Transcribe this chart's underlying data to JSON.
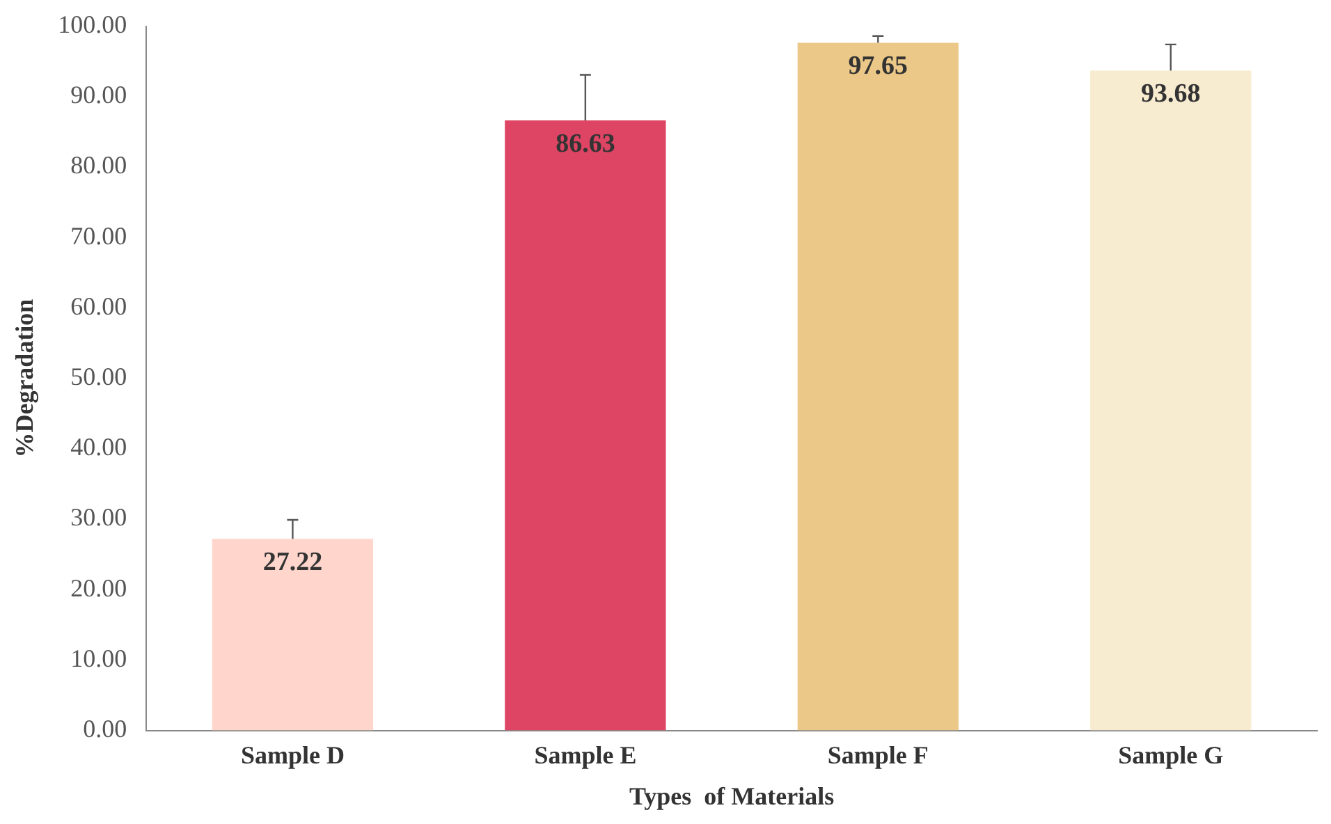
{
  "chart_data": {
    "type": "bar",
    "xlabel": "Types  of Materials",
    "ylabel": "%Degradation",
    "categories": [
      "Sample D",
      "Sample E",
      "Sample F",
      "Sample G"
    ],
    "values": [
      27.22,
      86.63,
      97.65,
      93.68
    ],
    "colors": [
      "#ffd5cc",
      "#de4463",
      "#ebc887",
      "#f7ebd0"
    ],
    "errors": [
      [
        27.22,
        29.9
      ],
      [
        86.63,
        93.1
      ],
      [
        97.65,
        98.6
      ],
      [
        93.68,
        97.4
      ]
    ],
    "data_labels": true,
    "grid": false,
    "legend": false,
    "ylim": [
      0,
      100
    ],
    "yticks": [
      {
        "value": 0,
        "label": "0.00"
      },
      {
        "value": 10,
        "label": "10.00"
      },
      {
        "value": 20,
        "label": "20.00"
      },
      {
        "value": 30,
        "label": "30.00"
      },
      {
        "value": 40,
        "label": "40.00"
      },
      {
        "value": 50,
        "label": "50.00"
      },
      {
        "value": 60,
        "label": "60.00"
      },
      {
        "value": 70,
        "label": "70.00"
      },
      {
        "value": 80,
        "label": "80.00"
      },
      {
        "value": 90,
        "label": "90.00"
      },
      {
        "value": 100,
        "label": "100.00"
      }
    ]
  }
}
